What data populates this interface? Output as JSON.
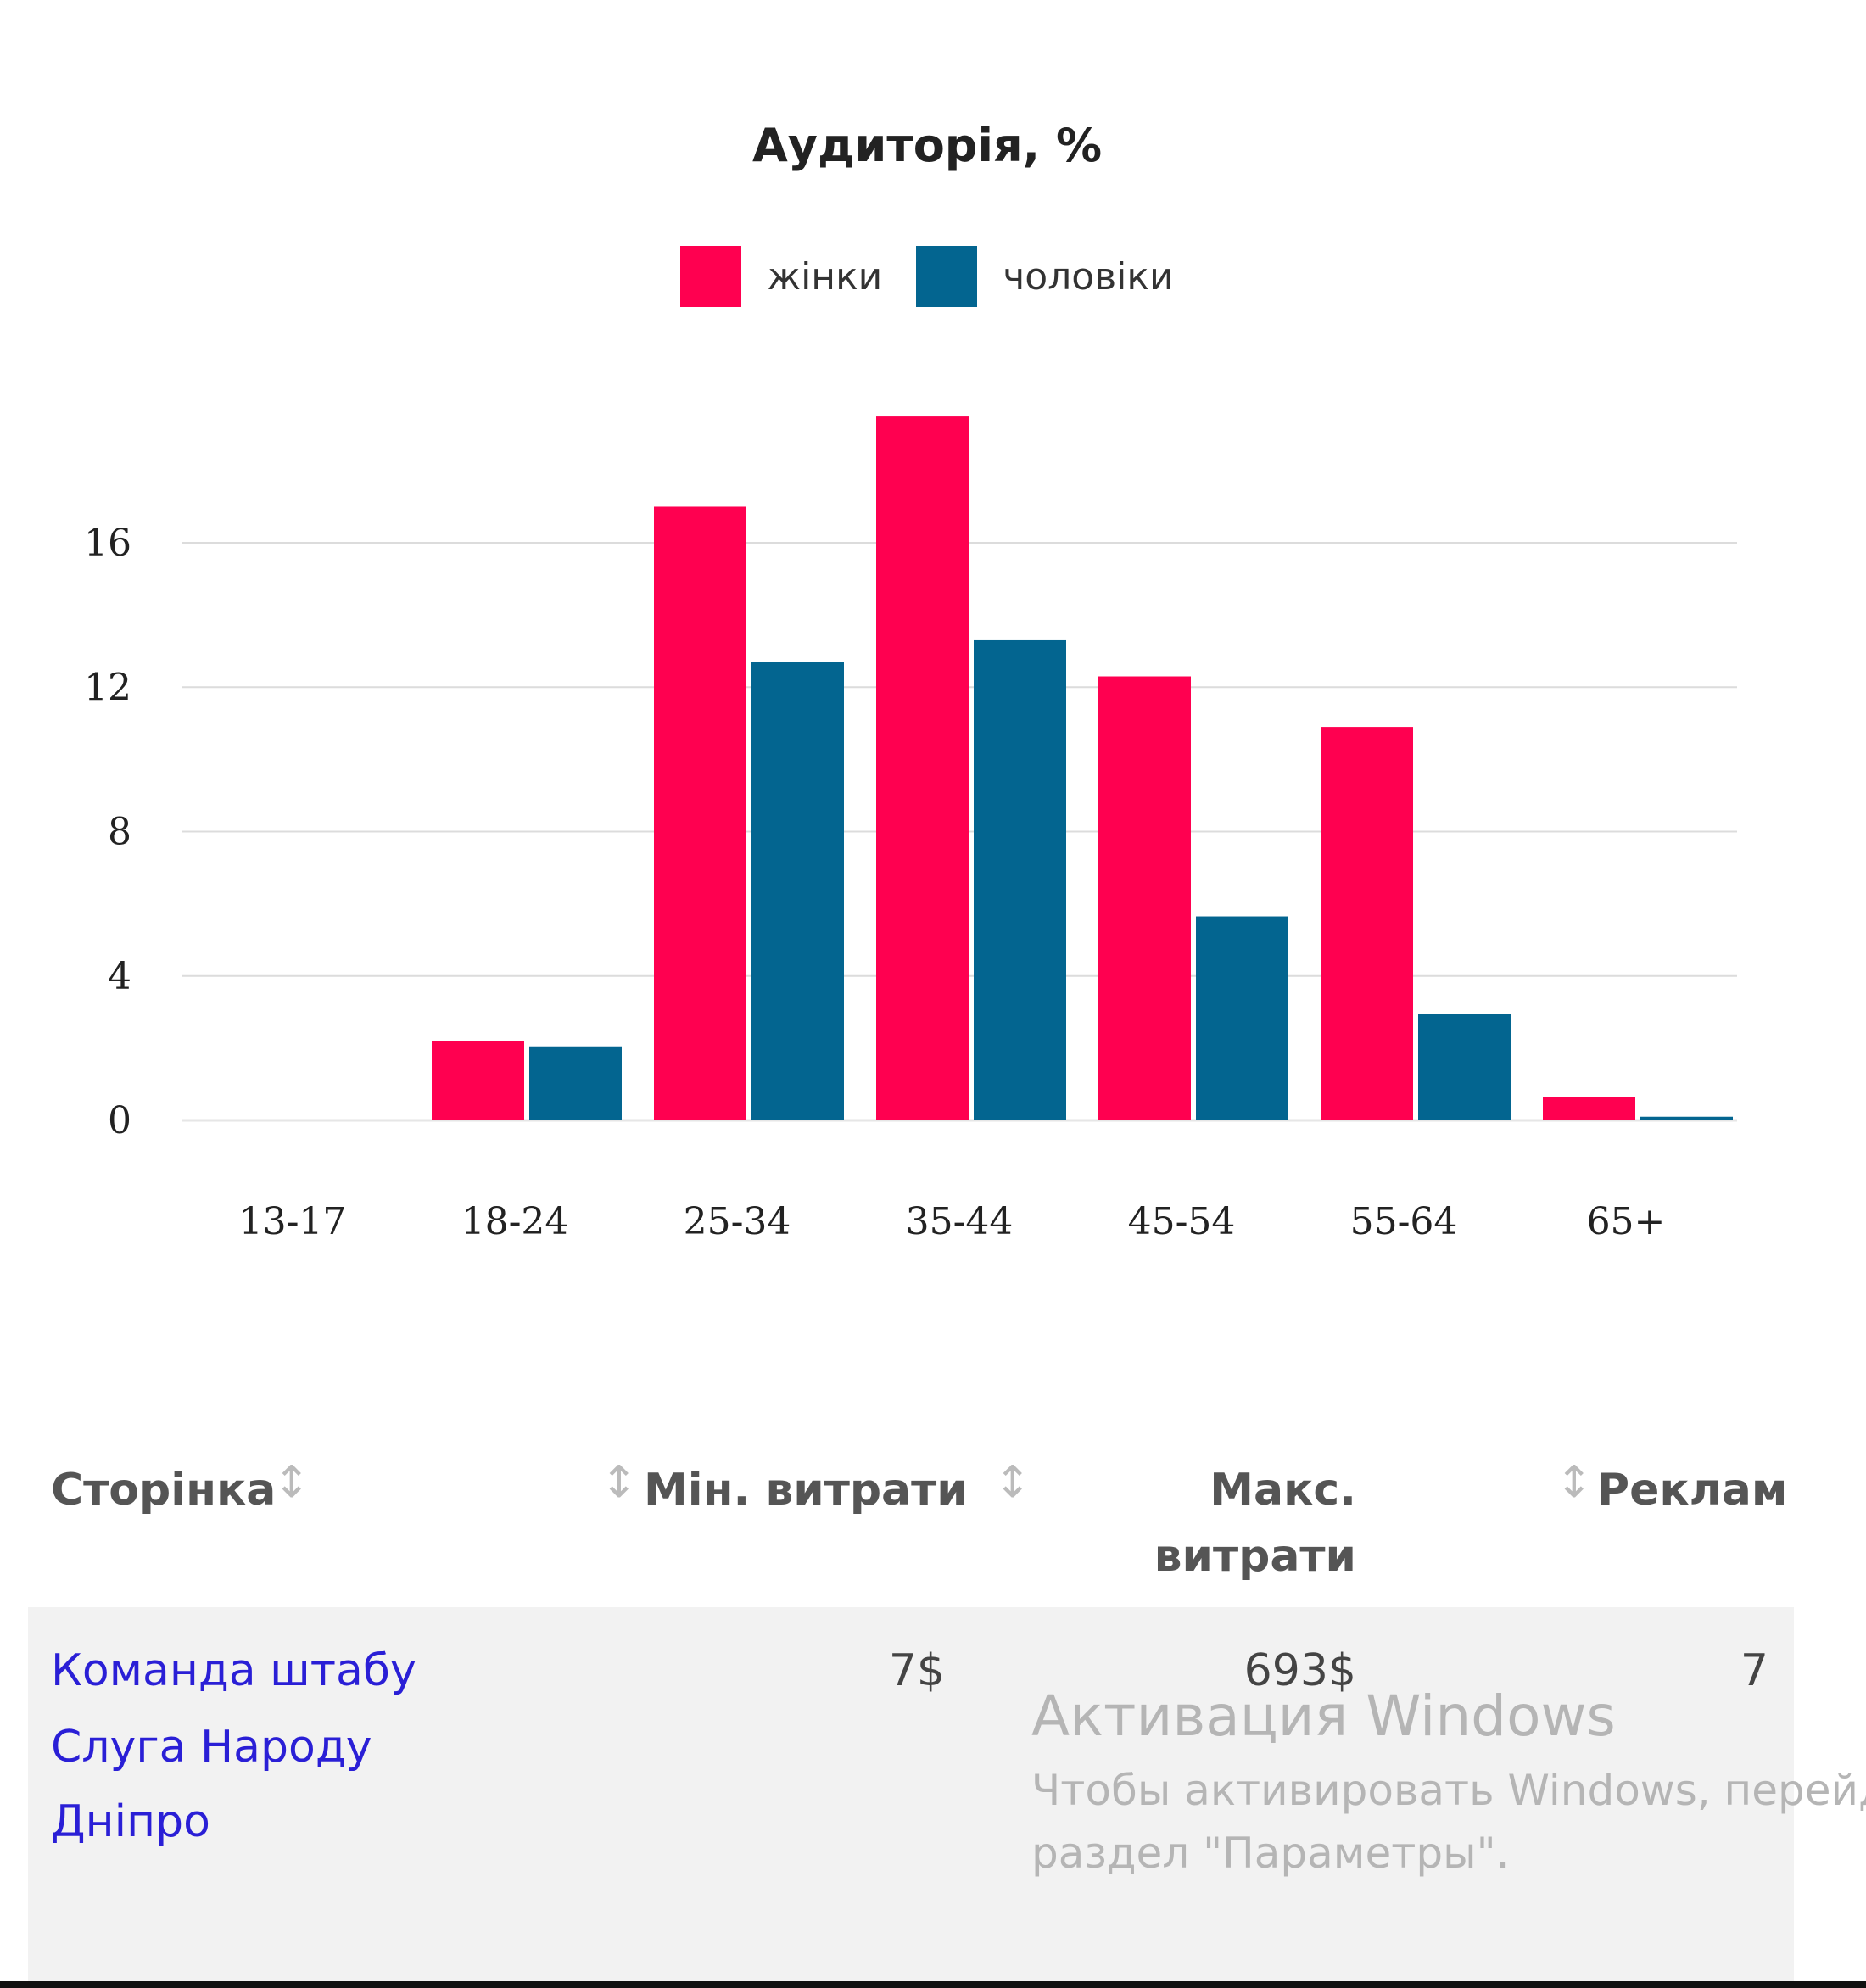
{
  "chart_data": {
    "type": "bar",
    "title": "Аудиторія, %",
    "categories": [
      "13-17",
      "18-24",
      "25-34",
      "35-44",
      "45-54",
      "55-64",
      "65+"
    ],
    "series": [
      {
        "name": "жінки",
        "color": "#ff0050",
        "values": [
          0,
          2.2,
          17.0,
          19.5,
          12.3,
          10.9,
          0.65
        ]
      },
      {
        "name": "чоловіки",
        "color": "#036590",
        "values": [
          0,
          2.05,
          12.7,
          13.3,
          5.65,
          2.95,
          0.1
        ]
      }
    ],
    "yticks": [
      0,
      4,
      8,
      12,
      16
    ],
    "ylim": [
      0,
      20
    ],
    "grid": true,
    "legend": "top-center",
    "xlabel": "",
    "ylabel": ""
  },
  "table": {
    "headers": [
      "Сторінка",
      "Мін. витрати",
      "Макс.",
      "витрати",
      "Реклам"
    ],
    "sort_icon": "↕",
    "row": {
      "page_lines": [
        "Команда штабу",
        "Слуга Народу",
        "Дніпро"
      ],
      "min_spend": "7$",
      "max_spend": "693$",
      "ads": "7"
    }
  },
  "watermark": {
    "title": "Активация Windows",
    "line1": "Чтобы активировать Windows, перейд",
    "line2": "раздел \"Параметры\"."
  }
}
